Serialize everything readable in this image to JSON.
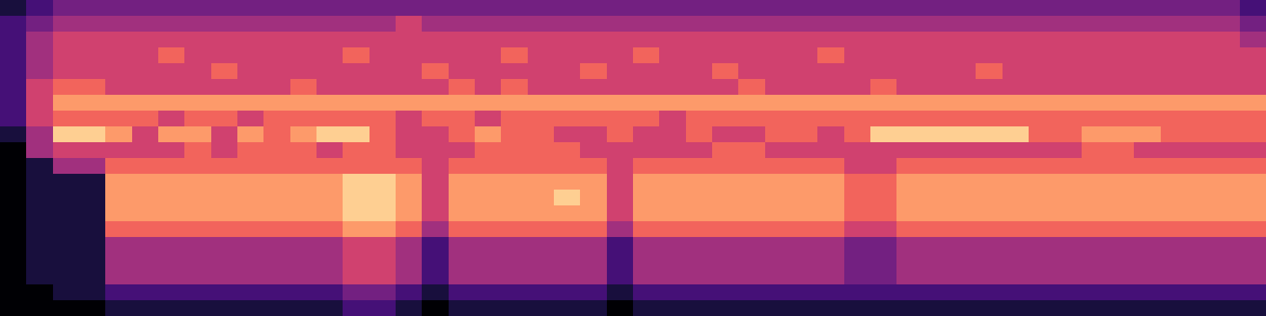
{
  "chart_data": {
    "type": "heatmap",
    "color": "magma",
    "tick_labels": false,
    "cells": [
      [
        1,
        2,
        3,
        3,
        3,
        3,
        3,
        3,
        3,
        3,
        3,
        3,
        3,
        3,
        3,
        3,
        3,
        3,
        3,
        3,
        3,
        3,
        3,
        3,
        3,
        3,
        3,
        3,
        3,
        3,
        3,
        3,
        3,
        3,
        3,
        3,
        3,
        3,
        3,
        3,
        3,
        3,
        3,
        3,
        3,
        3,
        3,
        2
      ],
      [
        2,
        3,
        4,
        4,
        4,
        4,
        4,
        4,
        4,
        4,
        4,
        4,
        4,
        4,
        4,
        5,
        4,
        4,
        4,
        4,
        4,
        4,
        4,
        4,
        4,
        4,
        4,
        4,
        4,
        4,
        4,
        4,
        4,
        4,
        4,
        4,
        4,
        4,
        4,
        4,
        4,
        4,
        4,
        4,
        4,
        4,
        4,
        3
      ],
      [
        2,
        4,
        5,
        5,
        5,
        5,
        5,
        5,
        5,
        5,
        5,
        5,
        5,
        5,
        5,
        5,
        5,
        5,
        5,
        5,
        5,
        5,
        5,
        5,
        5,
        5,
        5,
        5,
        5,
        5,
        5,
        5,
        5,
        5,
        5,
        5,
        5,
        5,
        5,
        5,
        5,
        5,
        5,
        5,
        5,
        5,
        5,
        4
      ],
      [
        2,
        4,
        5,
        5,
        5,
        5,
        6,
        5,
        5,
        5,
        5,
        5,
        5,
        6,
        5,
        5,
        5,
        5,
        5,
        6,
        5,
        5,
        5,
        5,
        6,
        5,
        5,
        5,
        5,
        5,
        5,
        6,
        5,
        5,
        5,
        5,
        5,
        5,
        5,
        5,
        5,
        5,
        5,
        5,
        5,
        5,
        5,
        5
      ],
      [
        2,
        4,
        5,
        5,
        5,
        5,
        5,
        5,
        6,
        5,
        5,
        5,
        5,
        5,
        5,
        5,
        6,
        5,
        5,
        5,
        5,
        5,
        6,
        5,
        5,
        5,
        5,
        6,
        5,
        5,
        5,
        5,
        5,
        5,
        5,
        5,
        5,
        6,
        5,
        5,
        5,
        5,
        5,
        5,
        5,
        5,
        5,
        5
      ],
      [
        2,
        5,
        6,
        6,
        5,
        5,
        5,
        5,
        5,
        5,
        5,
        6,
        5,
        5,
        5,
        5,
        5,
        6,
        5,
        6,
        5,
        5,
        5,
        5,
        5,
        5,
        5,
        5,
        6,
        5,
        5,
        5,
        5,
        6,
        5,
        5,
        5,
        5,
        5,
        5,
        5,
        5,
        5,
        5,
        5,
        5,
        5,
        5
      ],
      [
        2,
        5,
        7,
        7,
        7,
        7,
        7,
        7,
        7,
        7,
        7,
        7,
        7,
        7,
        7,
        7,
        7,
        7,
        7,
        7,
        7,
        7,
        7,
        7,
        7,
        7,
        7,
        7,
        7,
        7,
        7,
        7,
        7,
        7,
        7,
        7,
        7,
        7,
        7,
        7,
        7,
        7,
        7,
        7,
        7,
        7,
        7,
        7
      ],
      [
        2,
        5,
        6,
        6,
        6,
        6,
        5,
        6,
        6,
        5,
        6,
        6,
        6,
        6,
        6,
        5,
        6,
        6,
        5,
        6,
        6,
        6,
        6,
        6,
        6,
        5,
        6,
        6,
        6,
        6,
        6,
        6,
        6,
        6,
        6,
        6,
        6,
        6,
        6,
        6,
        6,
        6,
        6,
        6,
        6,
        6,
        6,
        6
      ],
      [
        1,
        4,
        8,
        8,
        7,
        5,
        7,
        7,
        5,
        7,
        6,
        7,
        8,
        8,
        6,
        5,
        5,
        6,
        7,
        6,
        6,
        5,
        5,
        6,
        5,
        5,
        6,
        5,
        5,
        6,
        6,
        5,
        6,
        8,
        8,
        8,
        8,
        8,
        8,
        6,
        6,
        7,
        7,
        7,
        6,
        6,
        6,
        6
      ],
      [
        0,
        4,
        5,
        5,
        5,
        5,
        5,
        6,
        5,
        6,
        6,
        6,
        5,
        6,
        6,
        5,
        5,
        5,
        6,
        6,
        6,
        6,
        5,
        5,
        5,
        5,
        5,
        6,
        6,
        5,
        5,
        5,
        5,
        5,
        5,
        5,
        5,
        5,
        5,
        5,
        5,
        6,
        6,
        5,
        5,
        5,
        5,
        5
      ],
      [
        0,
        1,
        4,
        4,
        6,
        6,
        6,
        6,
        6,
        6,
        6,
        6,
        6,
        6,
        6,
        6,
        5,
        6,
        6,
        6,
        6,
        6,
        6,
        5,
        6,
        6,
        6,
        6,
        6,
        6,
        6,
        6,
        5,
        5,
        6,
        6,
        6,
        6,
        6,
        6,
        6,
        6,
        6,
        6,
        6,
        6,
        6,
        6
      ],
      [
        0,
        1,
        1,
        1,
        7,
        7,
        7,
        7,
        7,
        7,
        7,
        7,
        7,
        8,
        8,
        7,
        5,
        7,
        7,
        7,
        7,
        7,
        7,
        5,
        7,
        7,
        7,
        7,
        7,
        7,
        7,
        7,
        6,
        6,
        7,
        7,
        7,
        7,
        7,
        7,
        7,
        7,
        7,
        7,
        7,
        7,
        7,
        7
      ],
      [
        0,
        1,
        1,
        1,
        7,
        7,
        7,
        7,
        7,
        7,
        7,
        7,
        7,
        8,
        8,
        7,
        5,
        7,
        7,
        7,
        7,
        8,
        7,
        5,
        7,
        7,
        7,
        7,
        7,
        7,
        7,
        7,
        6,
        6,
        7,
        7,
        7,
        7,
        7,
        7,
        7,
        7,
        7,
        7,
        7,
        7,
        7,
        7
      ],
      [
        0,
        1,
        1,
        1,
        7,
        7,
        7,
        7,
        7,
        7,
        7,
        7,
        7,
        8,
        8,
        7,
        5,
        7,
        7,
        7,
        7,
        7,
        7,
        5,
        7,
        7,
        7,
        7,
        7,
        7,
        7,
        7,
        6,
        6,
        7,
        7,
        7,
        7,
        7,
        7,
        7,
        7,
        7,
        7,
        7,
        7,
        7,
        7
      ],
      [
        0,
        1,
        1,
        1,
        6,
        6,
        6,
        6,
        6,
        6,
        6,
        6,
        6,
        7,
        7,
        6,
        4,
        6,
        6,
        6,
        6,
        6,
        6,
        4,
        6,
        6,
        6,
        6,
        6,
        6,
        6,
        6,
        5,
        5,
        6,
        6,
        6,
        6,
        6,
        6,
        6,
        6,
        6,
        6,
        6,
        6,
        6,
        6
      ],
      [
        0,
        1,
        1,
        1,
        4,
        4,
        4,
        4,
        4,
        4,
        4,
        4,
        4,
        5,
        5,
        4,
        2,
        4,
        4,
        4,
        4,
        4,
        4,
        2,
        4,
        4,
        4,
        4,
        4,
        4,
        4,
        4,
        3,
        3,
        4,
        4,
        4,
        4,
        4,
        4,
        4,
        4,
        4,
        4,
        4,
        4,
        4,
        4
      ],
      [
        0,
        1,
        1,
        1,
        4,
        4,
        4,
        4,
        4,
        4,
        4,
        4,
        4,
        5,
        5,
        4,
        2,
        4,
        4,
        4,
        4,
        4,
        4,
        2,
        4,
        4,
        4,
        4,
        4,
        4,
        4,
        4,
        3,
        3,
        4,
        4,
        4,
        4,
        4,
        4,
        4,
        4,
        4,
        4,
        4,
        4,
        4,
        4
      ],
      [
        0,
        1,
        1,
        1,
        4,
        4,
        4,
        4,
        4,
        4,
        4,
        4,
        4,
        5,
        5,
        4,
        2,
        4,
        4,
        4,
        4,
        4,
        4,
        2,
        4,
        4,
        4,
        4,
        4,
        4,
        4,
        4,
        3,
        3,
        4,
        4,
        4,
        4,
        4,
        4,
        4,
        4,
        4,
        4,
        4,
        4,
        4,
        4
      ],
      [
        0,
        0,
        1,
        1,
        2,
        2,
        2,
        2,
        2,
        2,
        2,
        2,
        2,
        3,
        3,
        2,
        1,
        2,
        2,
        2,
        2,
        2,
        2,
        1,
        2,
        2,
        2,
        2,
        2,
        2,
        2,
        2,
        2,
        2,
        2,
        2,
        2,
        2,
        2,
        2,
        2,
        2,
        2,
        2,
        2,
        2,
        2,
        2
      ],
      [
        0,
        0,
        0,
        0,
        1,
        1,
        1,
        1,
        1,
        1,
        1,
        1,
        1,
        2,
        2,
        1,
        0,
        1,
        1,
        1,
        1,
        1,
        1,
        0,
        1,
        1,
        1,
        1,
        1,
        1,
        1,
        1,
        1,
        1,
        1,
        1,
        1,
        1,
        1,
        1,
        1,
        1,
        1,
        1,
        1,
        1,
        1,
        1
      ]
    ]
  }
}
